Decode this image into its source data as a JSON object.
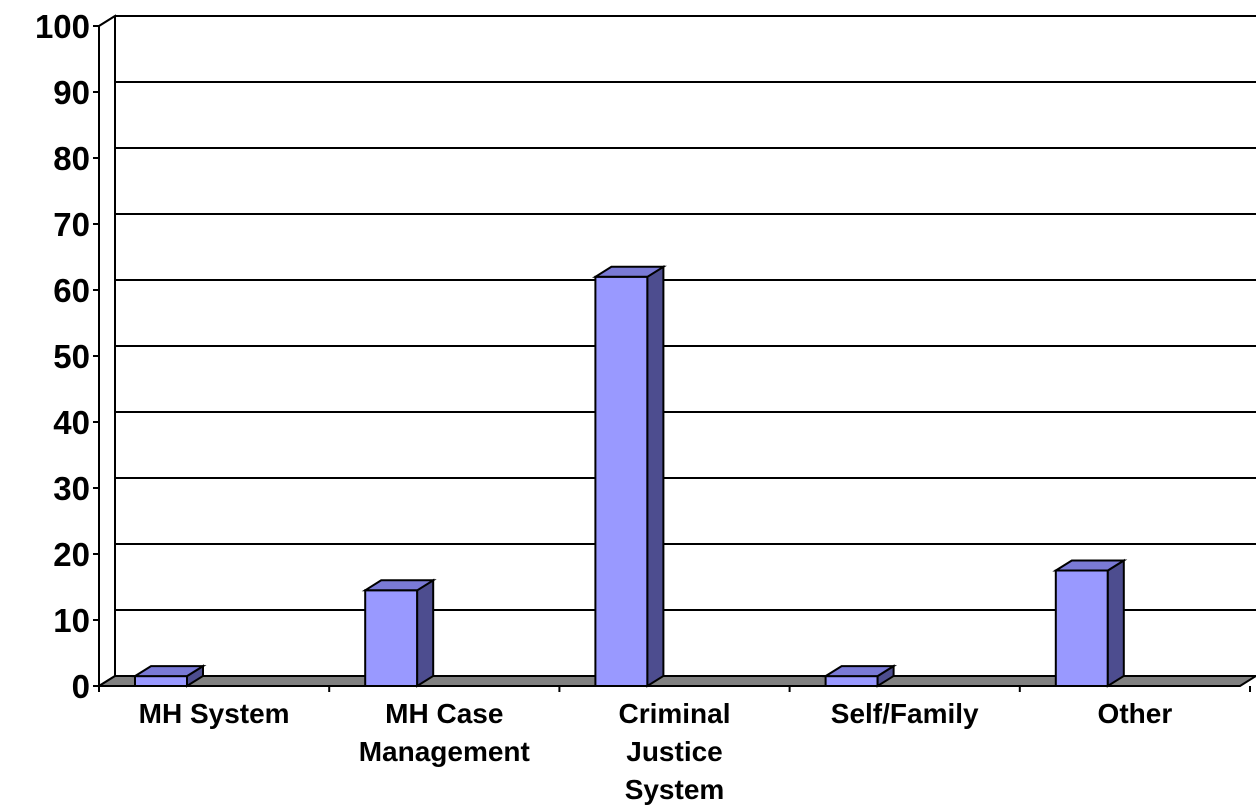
{
  "chart_data": {
    "type": "bar",
    "title": "",
    "xlabel": "",
    "ylabel": "",
    "ylim": [
      0,
      100
    ],
    "yticks": [
      0,
      10,
      20,
      30,
      40,
      50,
      60,
      70,
      80,
      90,
      100
    ],
    "grid": true,
    "legend": "none",
    "categories": [
      [
        "MH System"
      ],
      [
        "MH Case",
        "Management"
      ],
      [
        "Criminal",
        "Justice",
        "System"
      ],
      [
        "Self/Family"
      ],
      [
        "Other"
      ]
    ],
    "values": [
      1.5,
      14.5,
      62,
      1.5,
      17.5
    ],
    "colors": {
      "bar_front": "#9999ff",
      "bar_side": "#4d4d8f",
      "bar_top": "#7a7ad6",
      "floor": "#808080",
      "gridline": "#000000"
    }
  }
}
